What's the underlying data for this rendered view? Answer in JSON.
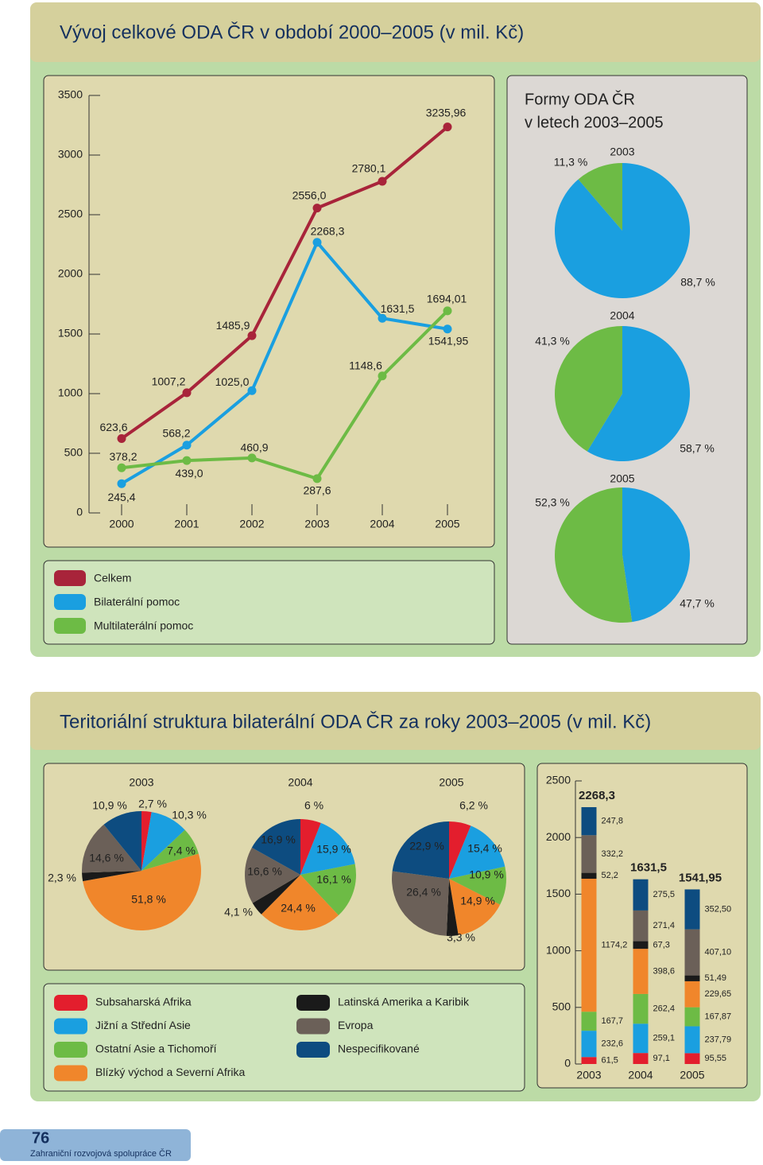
{
  "chart_data": [
    {
      "type": "line",
      "title": "Vývoj celkové ODA ČR v období 2000–2005 (v mil. Kč)",
      "categories": [
        "2000",
        "2001",
        "2002",
        "2003",
        "2004",
        "2005"
      ],
      "ylim": [
        0,
        3500
      ],
      "yticks": [
        0,
        500,
        1000,
        1500,
        2000,
        2500,
        3000,
        3500
      ],
      "series": [
        {
          "name": "Celkem",
          "color": "#a8243a",
          "values": [
            623.6,
            1007.2,
            1485.9,
            2556.0,
            2780.1,
            3235.96
          ],
          "value_labels": [
            "623,6",
            "1007,2",
            "1485,9",
            "2556,0",
            "2780,1",
            "3235,96"
          ]
        },
        {
          "name": "Bilaterální pomoc",
          "color": "#1a9fe0",
          "values": [
            245.4,
            568.2,
            1025.0,
            2268.3,
            1631.5,
            1541.95
          ],
          "value_labels": [
            "245,4",
            "568,2",
            "1025,0",
            "2268,3",
            "1631,5",
            "1541,95"
          ]
        },
        {
          "name": "Multilaterální pomoc",
          "color": "#6dbb45",
          "values": [
            378.2,
            439.0,
            460.9,
            287.6,
            1148.6,
            1694.01
          ],
          "value_labels": [
            "378,2",
            "439,0",
            "460,9",
            "287,6",
            "1148,6",
            "1694,01"
          ]
        }
      ]
    },
    {
      "type": "pie",
      "title_lines": [
        "Formy ODA ČR",
        "v letech 2003–2005"
      ],
      "colors": [
        "#1a9fe0",
        "#6dbb45"
      ],
      "pies": [
        {
          "name": "2003",
          "values": [
            88.7,
            11.3
          ],
          "value_labels": [
            "88,7 %",
            "11,3 %"
          ]
        },
        {
          "name": "2004",
          "values": [
            58.7,
            41.3
          ],
          "value_labels": [
            "58,7 %",
            "41,3 %"
          ]
        },
        {
          "name": "2005",
          "values": [
            47.7,
            52.3
          ],
          "value_labels": [
            "47,7 %",
            "52,3 %"
          ]
        }
      ]
    },
    {
      "type": "pie",
      "title": "Teritoriální struktura bilaterální ODA ČR za roky 2003–2005 (v mil. Kč)",
      "colors": [
        "#e31e2d",
        "#1a9fe0",
        "#6dbb45",
        "#f0862b",
        "#1a1a1a",
        "#6b6058",
        "#0d4c80"
      ],
      "pies": [
        {
          "name": "2003",
          "values": [
            2.7,
            10.3,
            7.4,
            51.8,
            2.3,
            14.6,
            10.9
          ],
          "value_labels": [
            "2,7 %",
            "10,3 %",
            "7,4 %",
            "51,8 %",
            "2,3 %",
            "14,6 %",
            "10,9 %"
          ]
        },
        {
          "name": "2004",
          "values": [
            6,
            15.9,
            16.1,
            24.4,
            4.1,
            16.6,
            16.9
          ],
          "value_labels": [
            "6 %",
            "15,9 %",
            "16,1 %",
            "24,4 %",
            "4,1 %",
            "16,6 %",
            "16,9 %"
          ]
        },
        {
          "name": "2005",
          "values": [
            6.2,
            15.4,
            10.9,
            14.9,
            3.3,
            26.4,
            22.9
          ],
          "value_labels": [
            "6,2 %",
            "15,4 %",
            "10,9 %",
            "14,9 %",
            "3,3 %",
            "26,4 %",
            "22,9 %"
          ]
        }
      ]
    },
    {
      "type": "stacked_bar",
      "categories": [
        "2003",
        "2004",
        "2005"
      ],
      "ylim": [
        0,
        2500
      ],
      "yticks": [
        0,
        500,
        1000,
        1500,
        2000,
        2500
      ],
      "totals": [
        2268.3,
        1631.5,
        1541.95
      ],
      "total_labels": [
        "2268,3",
        "1631,5",
        "1541,95"
      ],
      "series": [
        {
          "name": "Subsaharská Afrika",
          "color": "#e31e2d",
          "values": [
            61.5,
            97.1,
            95.55
          ],
          "value_labels": [
            "61,5",
            "97,1",
            "95,55"
          ]
        },
        {
          "name": "Jižní a Střední Asie",
          "color": "#1a9fe0",
          "values": [
            232.6,
            259.1,
            237.79
          ],
          "value_labels": [
            "232,6",
            "259,1",
            "237,79"
          ]
        },
        {
          "name": "Ostatní Asie a Tichomoří",
          "color": "#6dbb45",
          "values": [
            167.7,
            262.4,
            167.87
          ],
          "value_labels": [
            "167,7",
            "262,4",
            "167,87"
          ]
        },
        {
          "name": "Blízký východ a Severní Afrika",
          "color": "#f0862b",
          "values": [
            1174.2,
            398.6,
            229.65
          ],
          "value_labels": [
            "1174,2",
            "398,6",
            "229,65"
          ]
        },
        {
          "name": "Latinská Amerika a Karibik",
          "color": "#1a1a1a",
          "values": [
            52.2,
            67.3,
            51.49
          ],
          "value_labels": [
            "52,2",
            "67,3",
            "51,49"
          ]
        },
        {
          "name": "Evropa",
          "color": "#6b6058",
          "values": [
            332.2,
            271.4,
            407.1
          ],
          "value_labels": [
            "332,2",
            "271,4",
            "407,10"
          ]
        },
        {
          "name": "Nespecifikované",
          "color": "#0d4c80",
          "values": [
            247.8,
            275.5,
            352.5
          ],
          "value_labels": [
            "247,8",
            "275,5",
            "352,50"
          ]
        }
      ]
    }
  ],
  "footer": {
    "page": "76",
    "text": "Zahraniční rozvojová spolupráce ČR"
  }
}
